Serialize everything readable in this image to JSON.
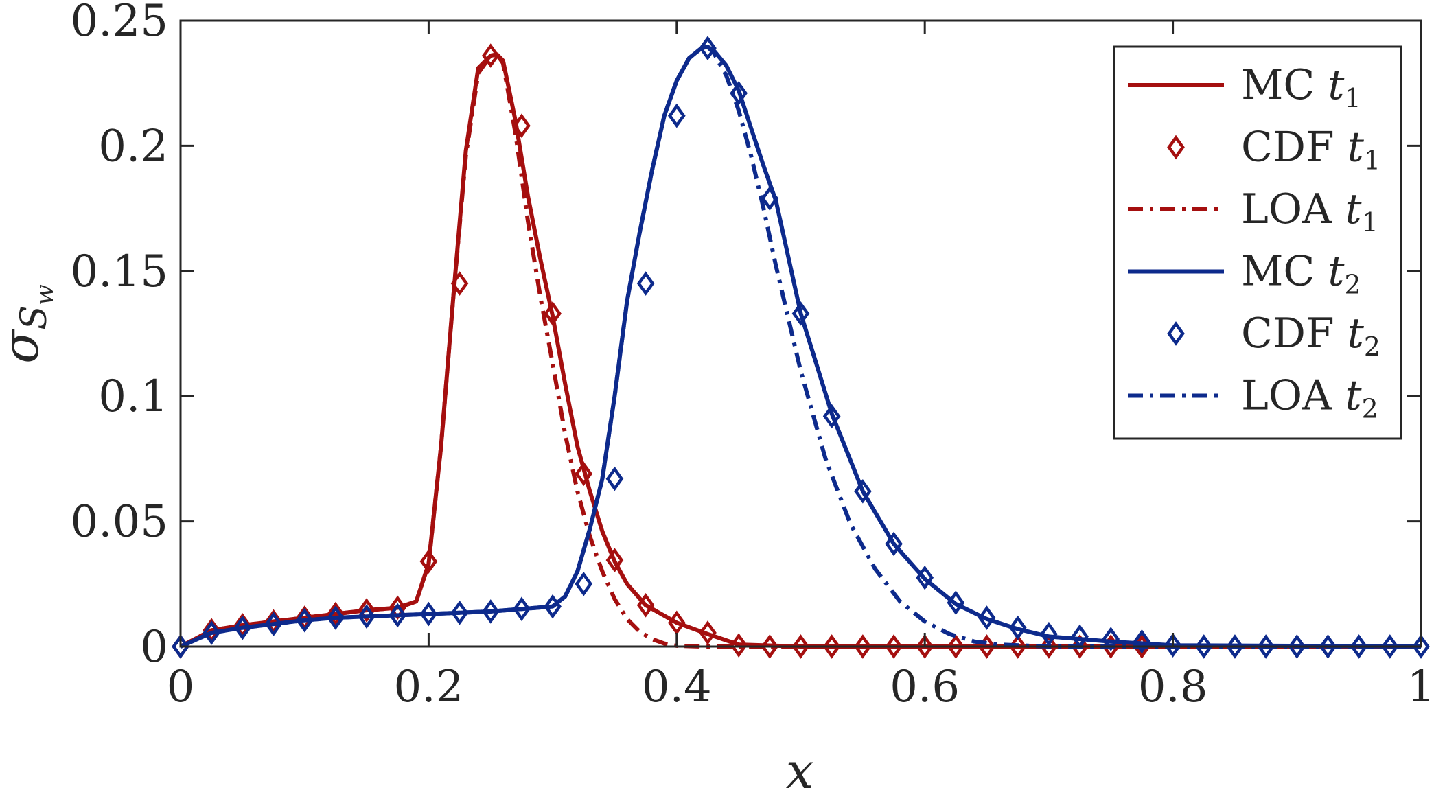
{
  "chart_data": {
    "type": "line",
    "xlabel": "x",
    "ylabel": {
      "main": "σ",
      "sub1": "S",
      "sub2": "w"
    },
    "xlim": [
      0,
      1
    ],
    "ylim": [
      0,
      0.25
    ],
    "xticks": [
      0,
      0.2,
      0.4,
      0.6,
      0.8,
      1
    ],
    "xtick_labels": [
      "0",
      "0.2",
      "0.4",
      "0.6",
      "0.8",
      "1"
    ],
    "yticks": [
      0,
      0.05,
      0.1,
      0.15,
      0.2,
      0.25
    ],
    "ytick_labels": [
      "0",
      "0.05",
      "0.1",
      "0.15",
      "0.2",
      "0.25"
    ],
    "grid": false,
    "legend_position": "top-right",
    "colors": {
      "t1": "#a50f0f",
      "t2": "#0d2a8c"
    },
    "series": [
      {
        "name": "MC t1",
        "label": "MC",
        "t": "t",
        "sub": "1",
        "color": "#a50f0f",
        "style": "solid",
        "x": [
          0,
          0.025,
          0.05,
          0.075,
          0.1,
          0.125,
          0.15,
          0.175,
          0.19,
          0.2,
          0.21,
          0.22,
          0.23,
          0.24,
          0.25,
          0.255,
          0.26,
          0.27,
          0.28,
          0.29,
          0.3,
          0.31,
          0.32,
          0.33,
          0.34,
          0.35,
          0.36,
          0.375,
          0.4,
          0.425,
          0.45,
          0.5,
          0.6,
          0.7,
          0.8,
          1
        ],
        "y": [
          0,
          0.0065,
          0.0085,
          0.01,
          0.0115,
          0.013,
          0.0145,
          0.0155,
          0.018,
          0.033,
          0.08,
          0.14,
          0.198,
          0.231,
          0.236,
          0.2365,
          0.234,
          0.21,
          0.18,
          0.155,
          0.132,
          0.105,
          0.08,
          0.062,
          0.046,
          0.034,
          0.025,
          0.0165,
          0.0095,
          0.005,
          0.0008,
          0,
          0,
          0,
          0,
          0
        ]
      },
      {
        "name": "CDF t1",
        "label": "CDF",
        "t": "t",
        "sub": "1",
        "color": "#a50f0f",
        "style": "markers",
        "x": [
          0,
          0.025,
          0.05,
          0.075,
          0.1,
          0.125,
          0.15,
          0.175,
          0.2,
          0.225,
          0.25,
          0.275,
          0.3,
          0.325,
          0.35,
          0.375,
          0.4,
          0.425,
          0.45,
          0.475,
          0.5,
          0.525,
          0.55,
          0.575,
          0.6,
          0.625,
          0.65,
          0.675,
          0.7,
          0.725,
          0.75,
          0.775
        ],
        "y": [
          0,
          0.0065,
          0.0085,
          0.01,
          0.0115,
          0.013,
          0.0145,
          0.0155,
          0.034,
          0.145,
          0.236,
          0.208,
          0.133,
          0.069,
          0.0345,
          0.0165,
          0.0095,
          0.0055,
          0.0005,
          0,
          0,
          0,
          0,
          0,
          0,
          0,
          0,
          0,
          0,
          0,
          0,
          0
        ]
      },
      {
        "name": "LOA t1",
        "label": "LOA",
        "t": "t",
        "sub": "1",
        "color": "#a50f0f",
        "style": "dashdot",
        "x": [
          0,
          0.025,
          0.05,
          0.075,
          0.1,
          0.125,
          0.15,
          0.175,
          0.19,
          0.2,
          0.21,
          0.22,
          0.23,
          0.24,
          0.25,
          0.255,
          0.26,
          0.27,
          0.28,
          0.29,
          0.3,
          0.31,
          0.32,
          0.33,
          0.34,
          0.35,
          0.36,
          0.37,
          0.38,
          0.39,
          0.4,
          0.42,
          1
        ],
        "y": [
          0,
          0.0065,
          0.0085,
          0.01,
          0.0115,
          0.013,
          0.0145,
          0.0155,
          0.018,
          0.033,
          0.08,
          0.14,
          0.196,
          0.229,
          0.236,
          0.2365,
          0.233,
          0.205,
          0.17,
          0.14,
          0.113,
          0.085,
          0.062,
          0.044,
          0.03,
          0.019,
          0.011,
          0.006,
          0.003,
          0.0012,
          0.0003,
          0,
          0
        ]
      },
      {
        "name": "MC t2",
        "label": "MC",
        "t": "t",
        "sub": "2",
        "color": "#0d2a8c",
        "style": "solid",
        "x": [
          0,
          0.025,
          0.05,
          0.075,
          0.1,
          0.125,
          0.15,
          0.175,
          0.2,
          0.225,
          0.25,
          0.275,
          0.3,
          0.31,
          0.32,
          0.33,
          0.34,
          0.35,
          0.36,
          0.37,
          0.38,
          0.39,
          0.4,
          0.41,
          0.42,
          0.425,
          0.43,
          0.44,
          0.45,
          0.46,
          0.47,
          0.48,
          0.5,
          0.525,
          0.55,
          0.575,
          0.6,
          0.625,
          0.65,
          0.675,
          0.7,
          0.75,
          0.8,
          1
        ],
        "y": [
          0,
          0.0055,
          0.0075,
          0.009,
          0.0105,
          0.0115,
          0.012,
          0.0125,
          0.013,
          0.0135,
          0.014,
          0.015,
          0.016,
          0.02,
          0.03,
          0.047,
          0.067,
          0.1,
          0.138,
          0.165,
          0.19,
          0.212,
          0.226,
          0.235,
          0.239,
          0.2395,
          0.238,
          0.232,
          0.222,
          0.207,
          0.192,
          0.178,
          0.133,
          0.093,
          0.062,
          0.041,
          0.027,
          0.017,
          0.011,
          0.007,
          0.004,
          0.002,
          0.0005,
          0
        ]
      },
      {
        "name": "CDF t2",
        "label": "CDF",
        "t": "t",
        "sub": "2",
        "color": "#0d2a8c",
        "style": "markers",
        "x": [
          0,
          0.025,
          0.05,
          0.075,
          0.1,
          0.125,
          0.15,
          0.175,
          0.2,
          0.225,
          0.25,
          0.275,
          0.3,
          0.325,
          0.35,
          0.375,
          0.4,
          0.425,
          0.45,
          0.475,
          0.5,
          0.525,
          0.55,
          0.575,
          0.6,
          0.625,
          0.65,
          0.675,
          0.7,
          0.725,
          0.75,
          0.775,
          0.8,
          0.825,
          0.85,
          0.875,
          0.9,
          0.925,
          0.95,
          0.975,
          1
        ],
        "y": [
          0,
          0.0055,
          0.0075,
          0.009,
          0.0105,
          0.0115,
          0.012,
          0.0125,
          0.013,
          0.0135,
          0.014,
          0.015,
          0.016,
          0.025,
          0.067,
          0.145,
          0.212,
          0.239,
          0.221,
          0.179,
          0.133,
          0.092,
          0.062,
          0.041,
          0.0275,
          0.0175,
          0.0115,
          0.0075,
          0.005,
          0.004,
          0.003,
          0.002,
          0.0005,
          0,
          0,
          0,
          0,
          0,
          0,
          0,
          0
        ]
      },
      {
        "name": "LOA t2",
        "label": "LOA",
        "t": "t",
        "sub": "2",
        "color": "#0d2a8c",
        "style": "dashdot",
        "x": [
          0,
          0.025,
          0.05,
          0.075,
          0.1,
          0.125,
          0.15,
          0.175,
          0.2,
          0.225,
          0.25,
          0.275,
          0.3,
          0.31,
          0.32,
          0.33,
          0.34,
          0.35,
          0.36,
          0.37,
          0.38,
          0.39,
          0.4,
          0.41,
          0.42,
          0.425,
          0.43,
          0.44,
          0.45,
          0.46,
          0.47,
          0.48,
          0.5,
          0.52,
          0.54,
          0.56,
          0.58,
          0.6,
          0.62,
          0.64,
          0.66,
          0.7,
          1
        ],
        "y": [
          0,
          0.0055,
          0.0075,
          0.009,
          0.0105,
          0.0115,
          0.012,
          0.0125,
          0.013,
          0.0135,
          0.014,
          0.015,
          0.016,
          0.02,
          0.03,
          0.047,
          0.067,
          0.1,
          0.138,
          0.165,
          0.19,
          0.212,
          0.226,
          0.235,
          0.239,
          0.2395,
          0.237,
          0.228,
          0.214,
          0.196,
          0.175,
          0.152,
          0.11,
          0.075,
          0.049,
          0.031,
          0.018,
          0.01,
          0.005,
          0.002,
          0.0008,
          0,
          0
        ]
      }
    ]
  }
}
